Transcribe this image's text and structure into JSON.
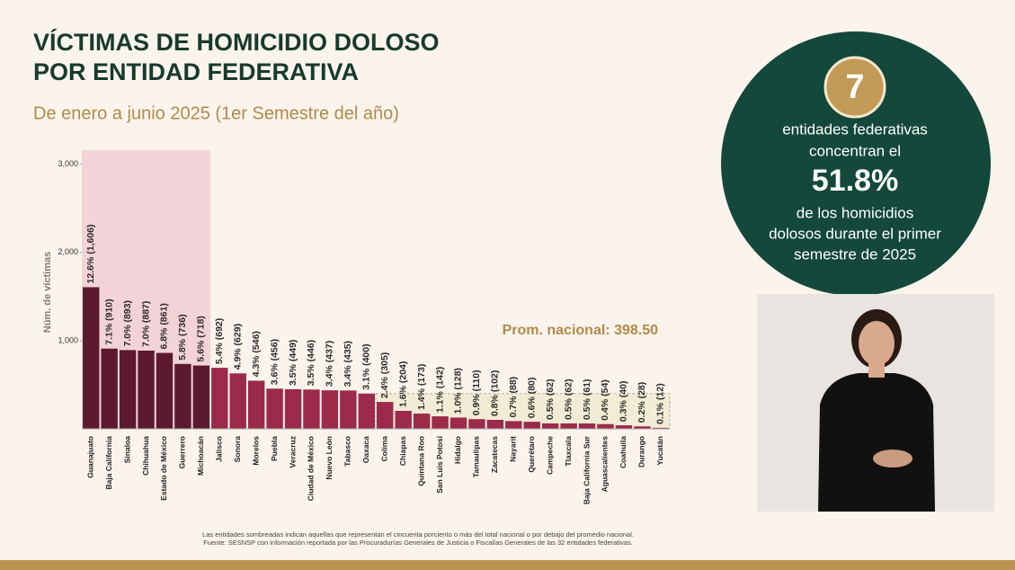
{
  "header": {
    "title": [
      "VÍCTIMAS DE HOMICIDIO DOLOSO",
      "POR ENTIDAD FEDERATIVA"
    ],
    "subtitle": "De enero a junio 2025 (1er Semestre del año)"
  },
  "chart_data": {
    "type": "bar",
    "y_label": "Núm. de víctimas",
    "categories": [
      "Guanajuato",
      "Baja California",
      "Sinaloa",
      "Chihuahua",
      "Estado de México",
      "Guerrero",
      "Michoacán",
      "Jalisco",
      "Sonora",
      "Morelos",
      "Puebla",
      "Veracruz",
      "Ciudad de México",
      "Nuevo León",
      "Tabasco",
      "Oaxaca",
      "Colima",
      "Chiapas",
      "Quintana Roo",
      "San Luis Potosí",
      "Hidalgo",
      "Tamaulipas",
      "Zacatecas",
      "Nayarit",
      "Querétaro",
      "Campeche",
      "Tlaxcala",
      "Baja California Sur",
      "Aguascalientes",
      "Coahuila",
      "Durango",
      "Yucatán"
    ],
    "values": [
      1606,
      910,
      893,
      887,
      861,
      736,
      718,
      692,
      629,
      546,
      456,
      449,
      446,
      437,
      435,
      400,
      305,
      204,
      173,
      142,
      128,
      110,
      102,
      88,
      80,
      62,
      62,
      61,
      54,
      40,
      28,
      12
    ],
    "value_labels": [
      "12.6% (1,606)",
      "7.1% (910)",
      "7.0% (893)",
      "7.0% (887)",
      "6.8% (861)",
      "5.8% (736)",
      "5.6% (718)",
      "5.4% (692)",
      "4.9% (629)",
      "4.3% (546)",
      "3.6% (456)",
      "3.5% (449)",
      "3.5% (446)",
      "3.4% (437)",
      "3.4% (435)",
      "3.1% (400)",
      "2.4% (305)",
      "1.6% (204)",
      "1.4% (173)",
      "1.1% (142)",
      "1.0% (128)",
      "0.9% (110)",
      "0.8% (102)",
      "0.7% (88)",
      "0.6% (80)",
      "0.5% (62)",
      "0.5% (62)",
      "0.5% (61)",
      "0.4% (54)",
      "0.3% (40)",
      "0.2% (28)",
      "0.1% (12)"
    ],
    "colors": [
      "#5b1a30",
      "#5b1a30",
      "#5b1a30",
      "#5b1a30",
      "#5b1a30",
      "#5b1a30",
      "#5b1a30",
      "#9c2a4b",
      "#9c2a4b",
      "#9c2a4b",
      "#9c2a4b",
      "#9c2a4b",
      "#9c2a4b",
      "#9c2a4b",
      "#9c2a4b",
      "#9c2a4b",
      "#9c2a4b",
      "#9c2a4b",
      "#9c2a4b",
      "#9c2a4b",
      "#9c2a4b",
      "#9c2a4b",
      "#9c2a4b",
      "#9c2a4b",
      "#9c2a4b",
      "#9c2a4b",
      "#9c2a4b",
      "#9c2a4b",
      "#9c2a4b",
      "#9c2a4b",
      "#9c2a4b",
      "#9c2a4b"
    ],
    "ylim": [
      0,
      3160
    ],
    "yticks": [
      {
        "value": 1000,
        "label": "1,000"
      },
      {
        "value": 2000,
        "label": "2,000"
      },
      {
        "value": 3000,
        "label": "3,000"
      }
    ],
    "average": 398.5,
    "average_label": "Prom. nacional: 398.50"
  },
  "callout": {
    "number": "7",
    "lines": [
      "entidades federativas",
      "concentran el"
    ],
    "highlight": "51.8%",
    "lines_after": [
      "de los homicidios",
      "dolosos durante el primer",
      "semestre de 2025"
    ]
  },
  "footnotes": [
    "Las entidades sombreadas indican aquellas que representan el cincuenta porciento o más del total nacional o por debajo del promedio nacional.",
    "Fuente: SESNSP con información reportada por las Procuradurías Generales de Justicia o Fiscalías Generales de las 32 entidades federativas."
  ]
}
